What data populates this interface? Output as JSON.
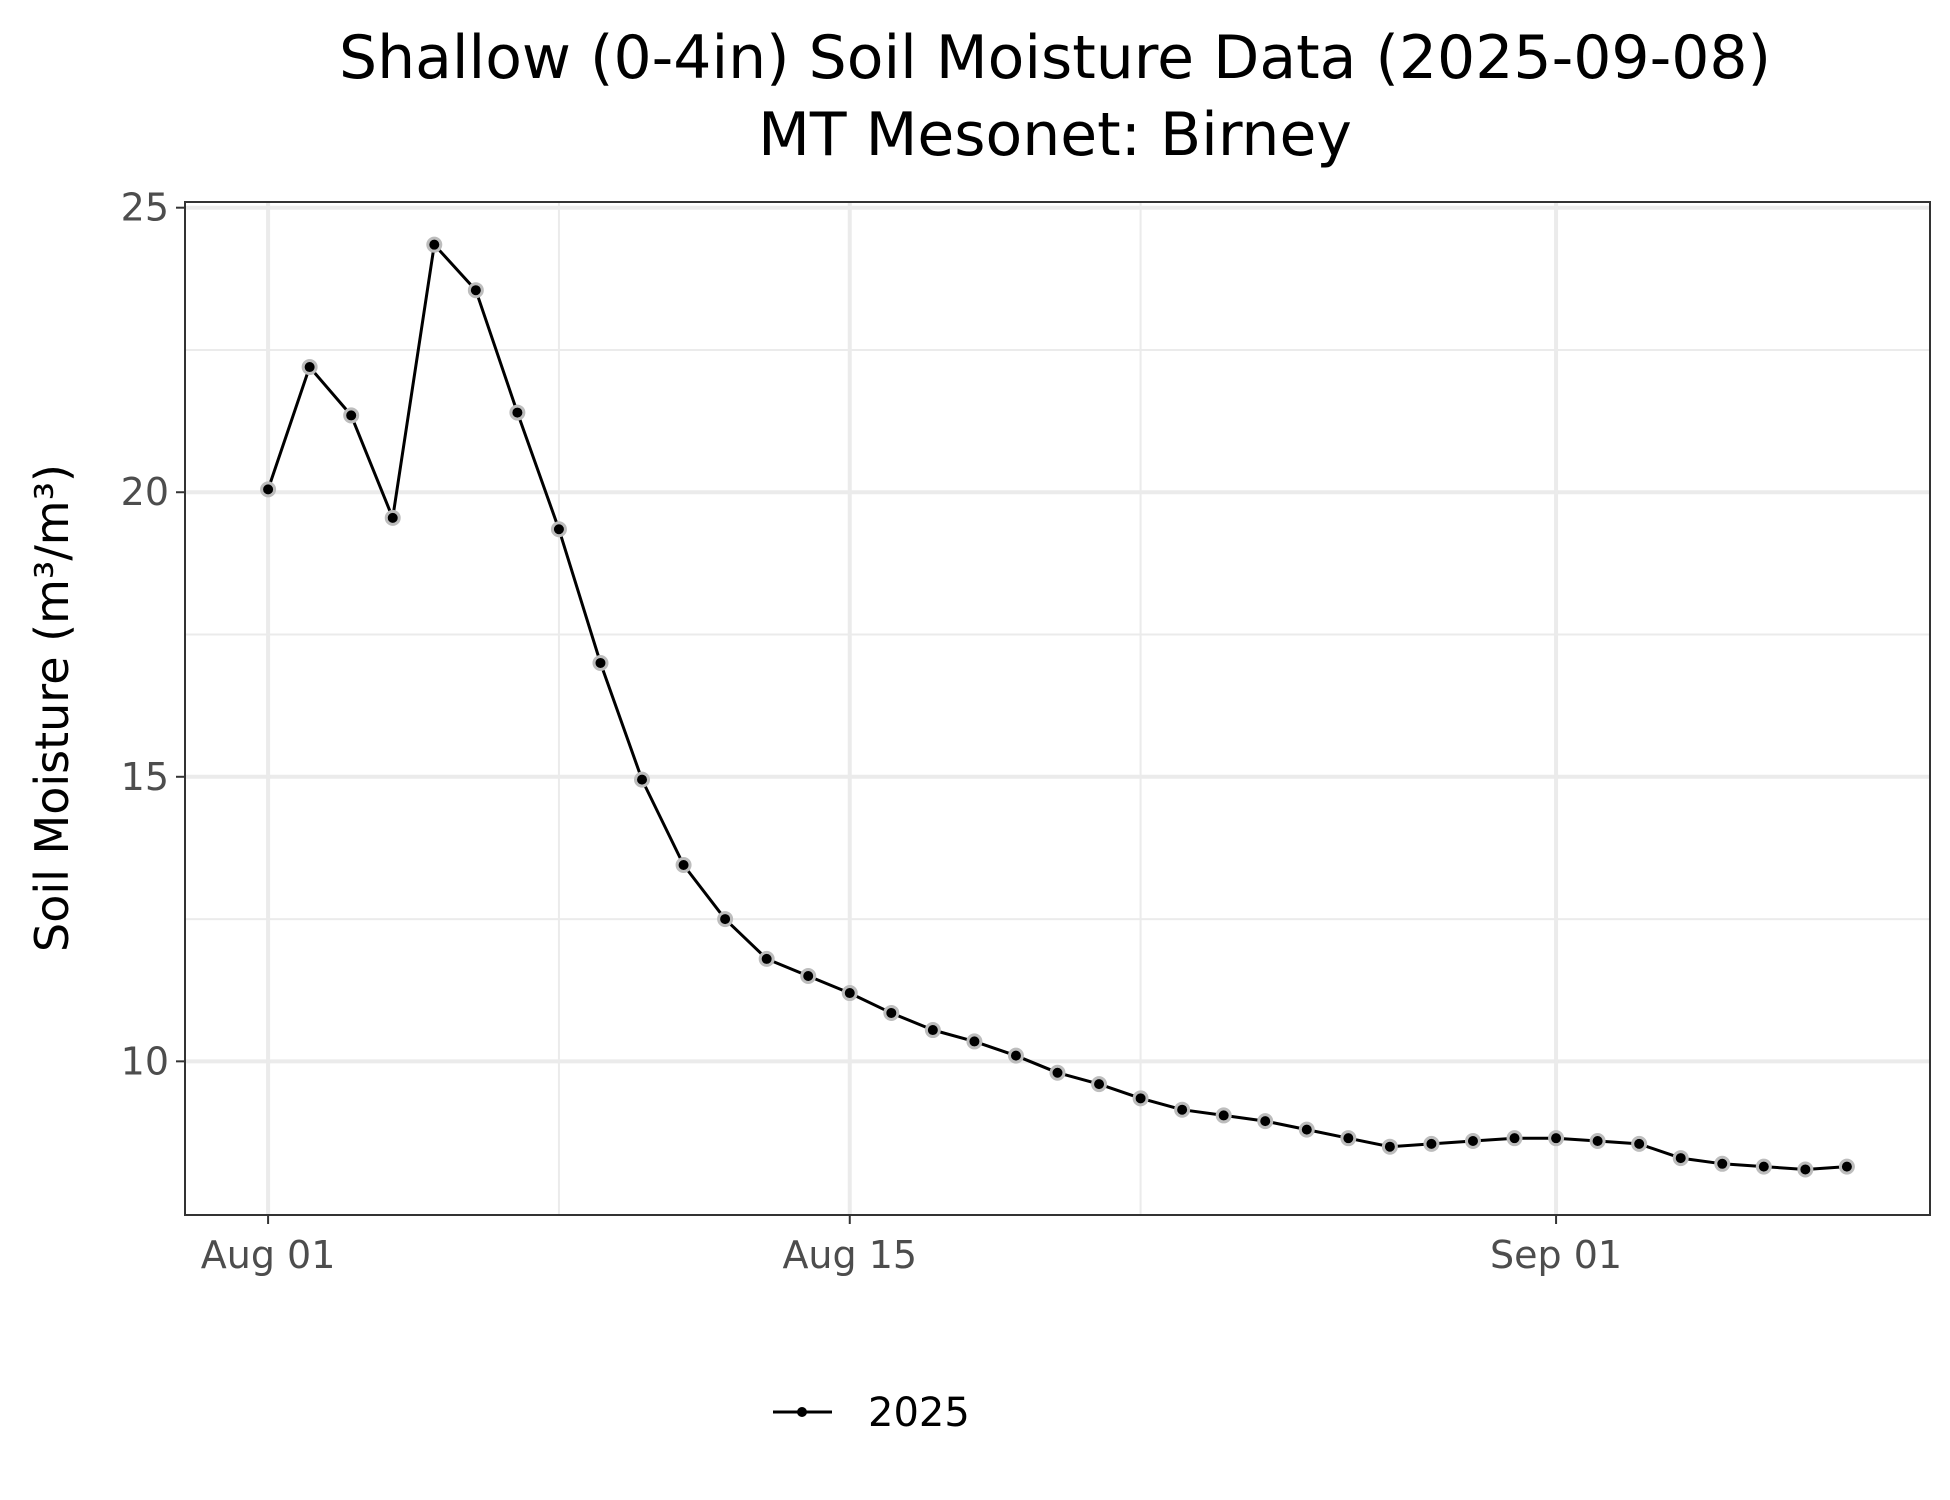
{
  "chart_data": {
    "type": "line",
    "title": "Shallow (0-4in) Soil Moisture Data (2025-09-08)",
    "subtitle": "MT Mesonet: Birney",
    "xlabel": "",
    "ylabel": "Soil Moisture (m³/m³)",
    "xlim": [
      "2025-07-30",
      "2025-09-10"
    ],
    "ylim": [
      7.3,
      25.1
    ],
    "x_ticks": [
      {
        "date": "2025-08-01",
        "label": "Aug 01"
      },
      {
        "date": "2025-08-15",
        "label": "Aug 15"
      },
      {
        "date": "2025-09-01",
        "label": "Sep 01"
      }
    ],
    "x_minor_ticks": [
      "2025-08-08",
      "2025-08-22"
    ],
    "y_ticks": [
      10,
      15,
      20,
      25
    ],
    "y_minor_ticks": [
      12.5,
      17.5,
      22.5
    ],
    "grid": true,
    "legend_position": "bottom",
    "series": [
      {
        "name": "2025",
        "color": "#000000",
        "marker_outline": "#bdbdbd",
        "x": [
          "2025-08-01",
          "2025-08-02",
          "2025-08-03",
          "2025-08-04",
          "2025-08-05",
          "2025-08-06",
          "2025-08-07",
          "2025-08-08",
          "2025-08-09",
          "2025-08-10",
          "2025-08-11",
          "2025-08-12",
          "2025-08-13",
          "2025-08-14",
          "2025-08-15",
          "2025-08-16",
          "2025-08-17",
          "2025-08-18",
          "2025-08-19",
          "2025-08-20",
          "2025-08-21",
          "2025-08-22",
          "2025-08-23",
          "2025-08-24",
          "2025-08-25",
          "2025-08-26",
          "2025-08-27",
          "2025-08-28",
          "2025-08-29",
          "2025-08-30",
          "2025-08-31",
          "2025-09-01",
          "2025-09-02",
          "2025-09-03",
          "2025-09-04",
          "2025-09-05",
          "2025-09-06",
          "2025-09-07",
          "2025-09-08"
        ],
        "values": [
          20.05,
          22.2,
          21.35,
          19.55,
          24.35,
          23.55,
          21.4,
          19.35,
          17.0,
          14.95,
          13.45,
          12.5,
          11.8,
          11.5,
          11.2,
          10.85,
          10.55,
          10.35,
          10.1,
          9.8,
          9.6,
          9.35,
          9.15,
          9.05,
          8.95,
          8.8,
          8.65,
          8.5,
          8.55,
          8.6,
          8.65,
          8.65,
          8.6,
          8.55,
          8.3,
          8.2,
          8.15,
          8.1,
          8.15
        ]
      }
    ]
  }
}
